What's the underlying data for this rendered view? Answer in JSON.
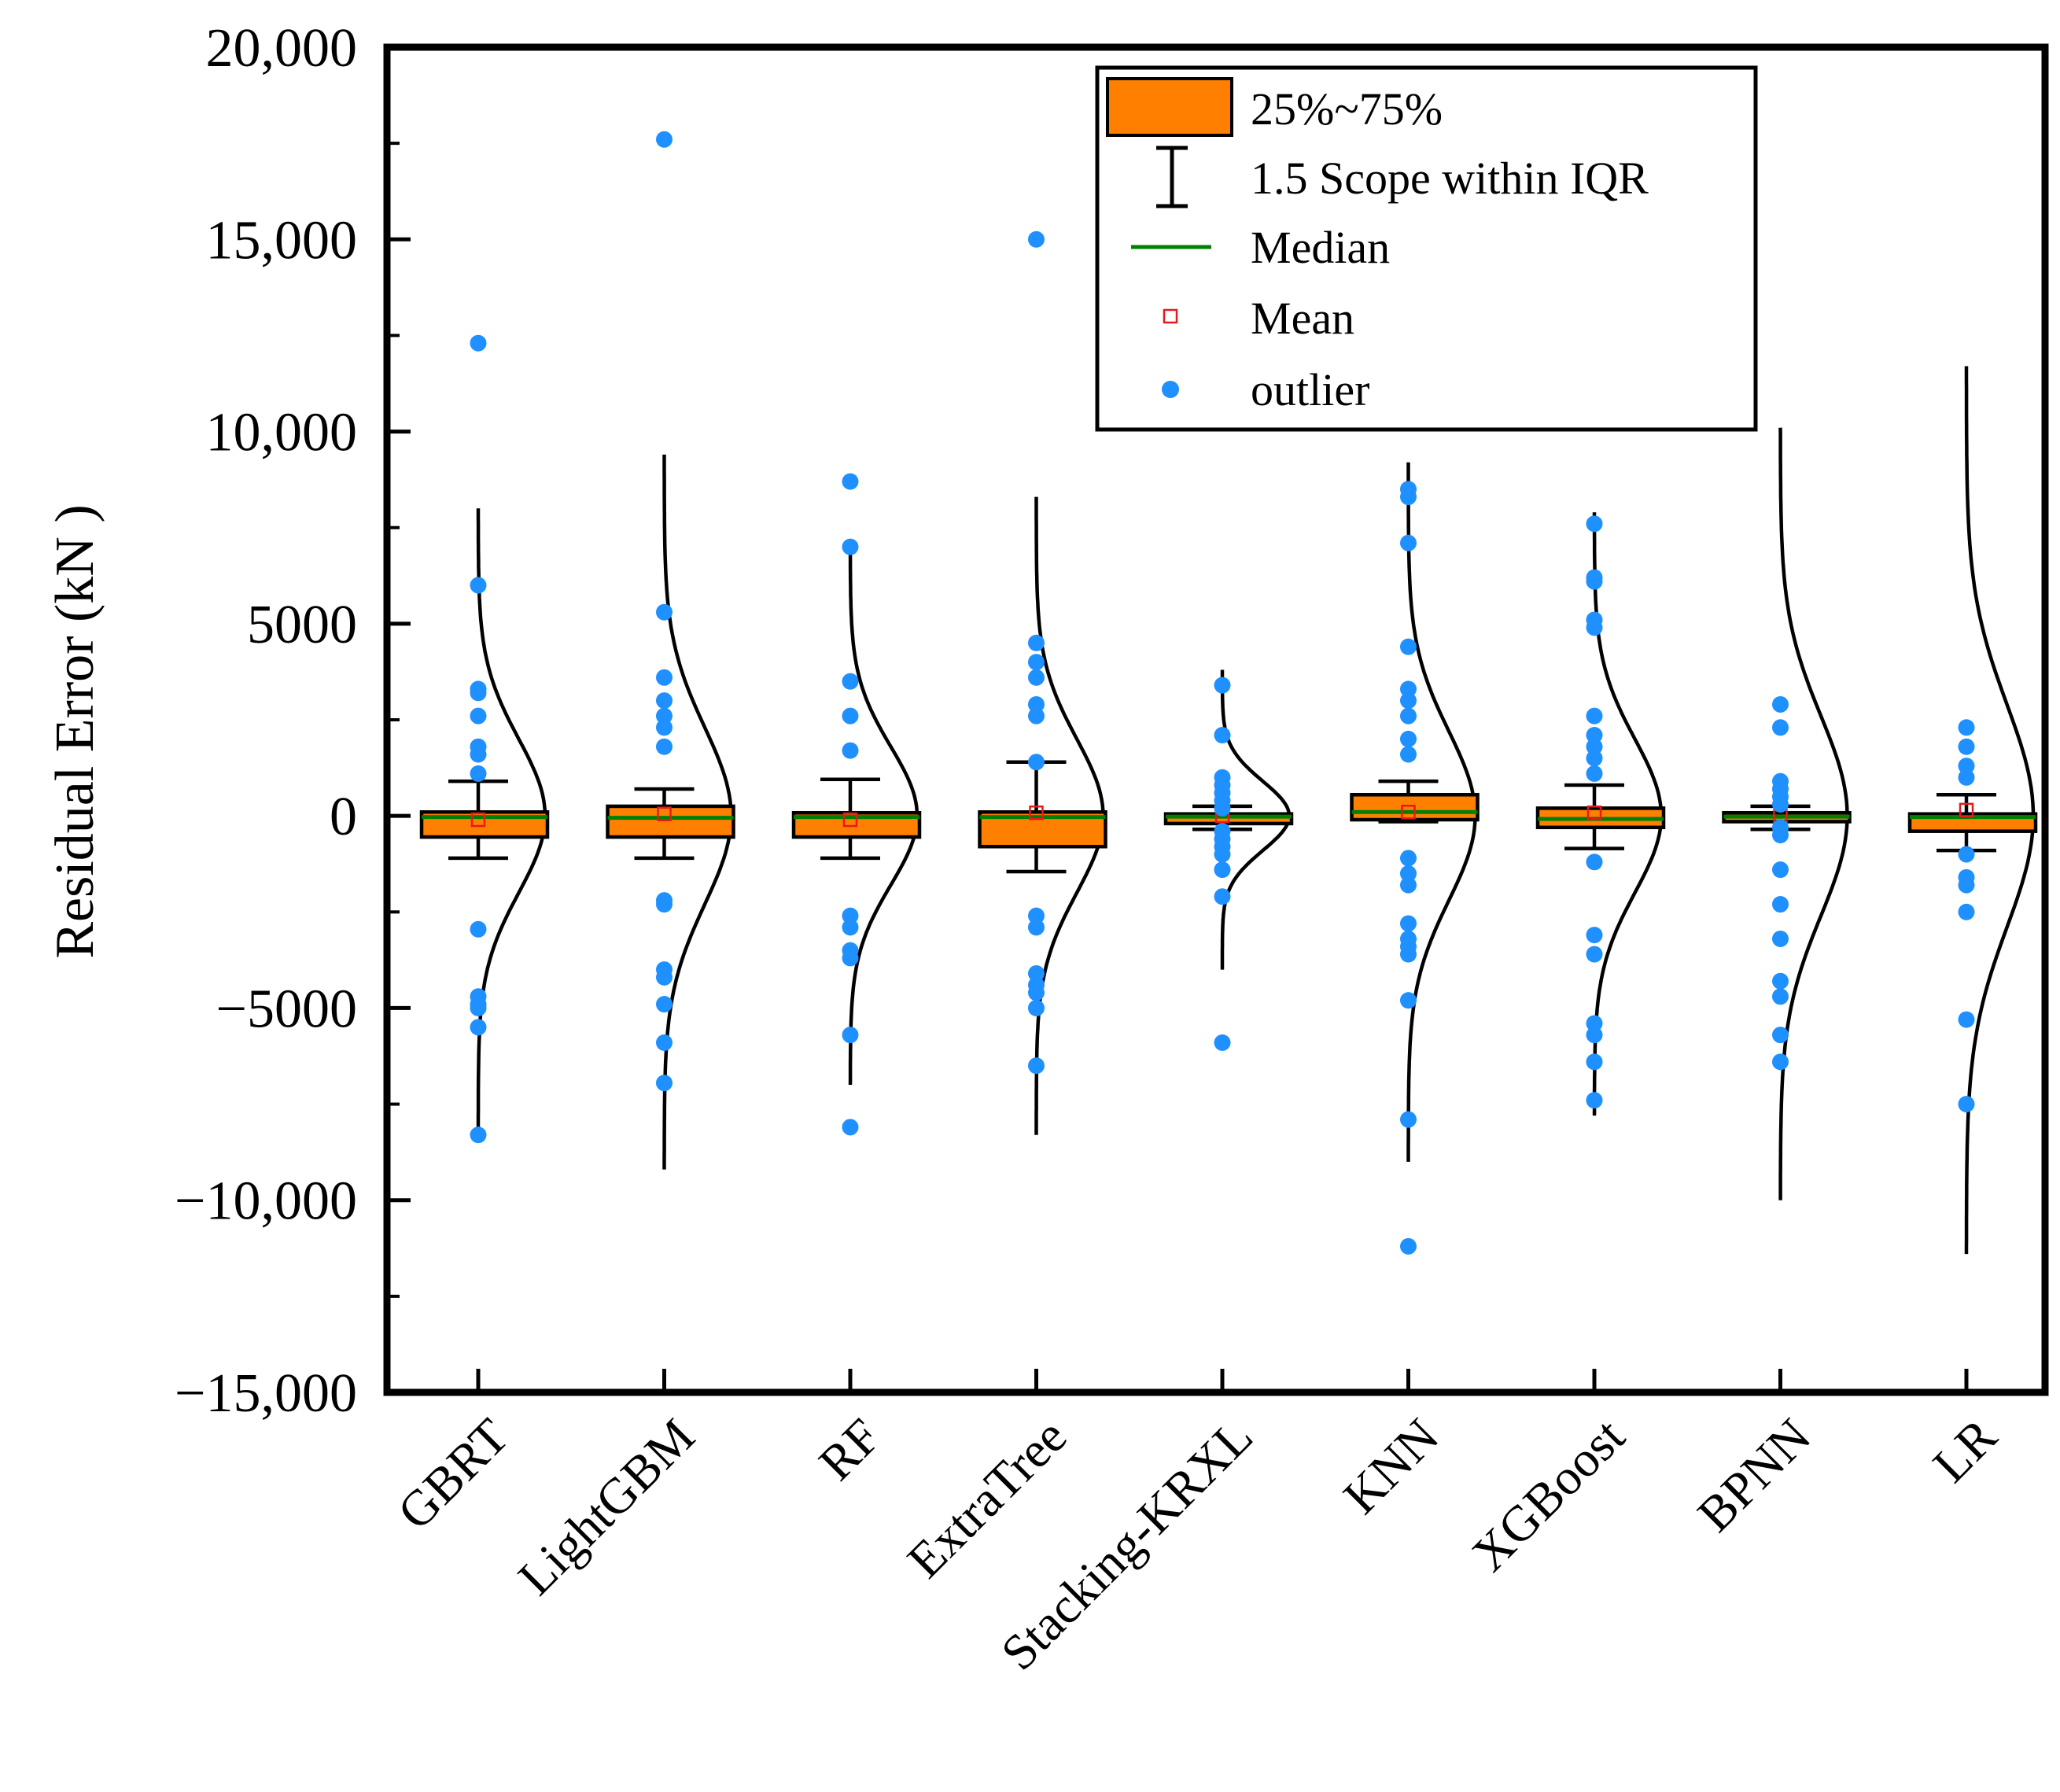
{
  "chart_data": {
    "type": "box",
    "ylabel": "Residual Error (kN )",
    "ylim": [
      -15000,
      20000
    ],
    "yticks": [
      -15000,
      -10000,
      -5000,
      0,
      5000,
      10000,
      15000,
      20000
    ],
    "ytick_labels": [
      "−15,000",
      "−10,000",
      "−5000",
      "0",
      "5000",
      "10,000",
      "15,000",
      "20,000"
    ],
    "categories": [
      "GBRT",
      "LightGBM",
      "RF",
      "ExtraTree",
      "Stacking-KRXL",
      "KNN",
      "XGBoost",
      "BPNN",
      "LR"
    ],
    "legend": {
      "position": "top-right",
      "box_label": "25%~75%",
      "whisker_label": "1.5 Scope within IQR",
      "median_label": "Median",
      "mean_label": "Mean",
      "outlier_label": "outlier"
    },
    "colors": {
      "box": "#ff7f00",
      "median": "#008000",
      "mean": "#e41a1c",
      "outlier": "#1e90ff",
      "outline": "#000000"
    },
    "series": [
      {
        "name": "GBRT",
        "q1": -550,
        "median": -30,
        "q3": 100,
        "whisker_low": -1100,
        "whisker_high": 900,
        "mean": -100,
        "curve_mean": 0,
        "curve_sd": 2000,
        "curve_min": -8500,
        "curve_max": 8000,
        "outliers": [
          12300,
          6000,
          3300,
          3200,
          2600,
          1800,
          1600,
          1100,
          -2950,
          -4700,
          -4900,
          -5000,
          -5500,
          -8300
        ]
      },
      {
        "name": "LightGBM",
        "q1": -550,
        "median": -50,
        "q3": 250,
        "whisker_low": -1100,
        "whisker_high": 700,
        "mean": 50,
        "curve_mean": 0,
        "curve_sd": 2300,
        "curve_min": -9200,
        "curve_max": 9400,
        "outliers": [
          17600,
          5300,
          3600,
          3000,
          2600,
          2300,
          1800,
          -2200,
          -2300,
          -4000,
          -4200,
          -4900,
          -5900,
          -6950
        ]
      },
      {
        "name": "RF",
        "q1": -550,
        "median": -30,
        "q3": 80,
        "whisker_low": -1100,
        "whisker_high": 950,
        "mean": -100,
        "curve_mean": 0,
        "curve_sd": 1800,
        "curve_min": -7000,
        "curve_max": 7000,
        "outliers": [
          8700,
          7000,
          3500,
          2600,
          1700,
          -2600,
          -2900,
          -3500,
          -3700,
          -5700,
          -8100
        ]
      },
      {
        "name": "ExtraTree",
        "q1": -800,
        "median": -30,
        "q3": 100,
        "whisker_low": -1450,
        "whisker_high": 1400,
        "mean": 80,
        "curve_mean": 0,
        "curve_sd": 2000,
        "curve_min": -8300,
        "curve_max": 8300,
        "outliers": [
          15000,
          4500,
          4000,
          3600,
          2900,
          2600,
          1400,
          -2600,
          -2900,
          -4100,
          -4400,
          -4600,
          -5000,
          -6500
        ]
      },
      {
        "name": "Stacking-KRXL",
        "q1": -200,
        "median": -20,
        "q3": 50,
        "whisker_low": -350,
        "whisker_high": 250,
        "mean": 0,
        "curve_mean": 0,
        "curve_sd": 900,
        "curve_min": -4000,
        "curve_max": 3800,
        "outliers": [
          3400,
          2100,
          1000,
          800,
          600,
          400,
          200,
          -400,
          -600,
          -800,
          -1000,
          -1400,
          -2100,
          -5900
        ]
      },
      {
        "name": "KNN",
        "q1": -100,
        "median": 100,
        "q3": 550,
        "whisker_low": -150,
        "whisker_high": 900,
        "mean": 100,
        "curve_mean": 0,
        "curve_sd": 2200,
        "curve_min": -9000,
        "curve_max": 9200,
        "outliers": [
          8500,
          8300,
          7100,
          4400,
          3300,
          3000,
          2600,
          2000,
          1600,
          -1100,
          -1500,
          -1800,
          -2800,
          -3200,
          -3400,
          -3600,
          -4800,
          -7900,
          -11200
        ]
      },
      {
        "name": "XGBoost",
        "q1": -300,
        "median": -80,
        "q3": 200,
        "whisker_low": -850,
        "whisker_high": 800,
        "mean": 80,
        "curve_mean": 0,
        "curve_sd": 2000,
        "curve_min": -7800,
        "curve_max": 7900,
        "outliers": [
          7600,
          6200,
          6100,
          5100,
          4900,
          2600,
          2100,
          1800,
          1500,
          1100,
          -1200,
          -3100,
          -3600,
          -5400,
          -5700,
          -6400,
          -7400
        ]
      },
      {
        "name": "BPNN",
        "q1": -150,
        "median": -20,
        "q3": 80,
        "whisker_low": -350,
        "whisker_high": 250,
        "mean": 0,
        "curve_mean": 0,
        "curve_sd": 2600,
        "curve_min": -10000,
        "curve_max": 10100,
        "outliers": [
          2900,
          2300,
          900,
          700,
          500,
          300,
          -300,
          -500,
          -1400,
          -2300,
          -3200,
          -4300,
          -4700,
          -5700,
          -6400
        ]
      },
      {
        "name": "LR",
        "q1": -400,
        "median": -30,
        "q3": 50,
        "whisker_low": -900,
        "whisker_high": 550,
        "mean": 150,
        "curve_mean": 0,
        "curve_sd": 2900,
        "curve_min": -11400,
        "curve_max": 11700,
        "outliers": [
          2300,
          1800,
          1300,
          1000,
          -1000,
          -1600,
          -1800,
          -2500,
          -5300,
          -7500
        ]
      }
    ]
  }
}
